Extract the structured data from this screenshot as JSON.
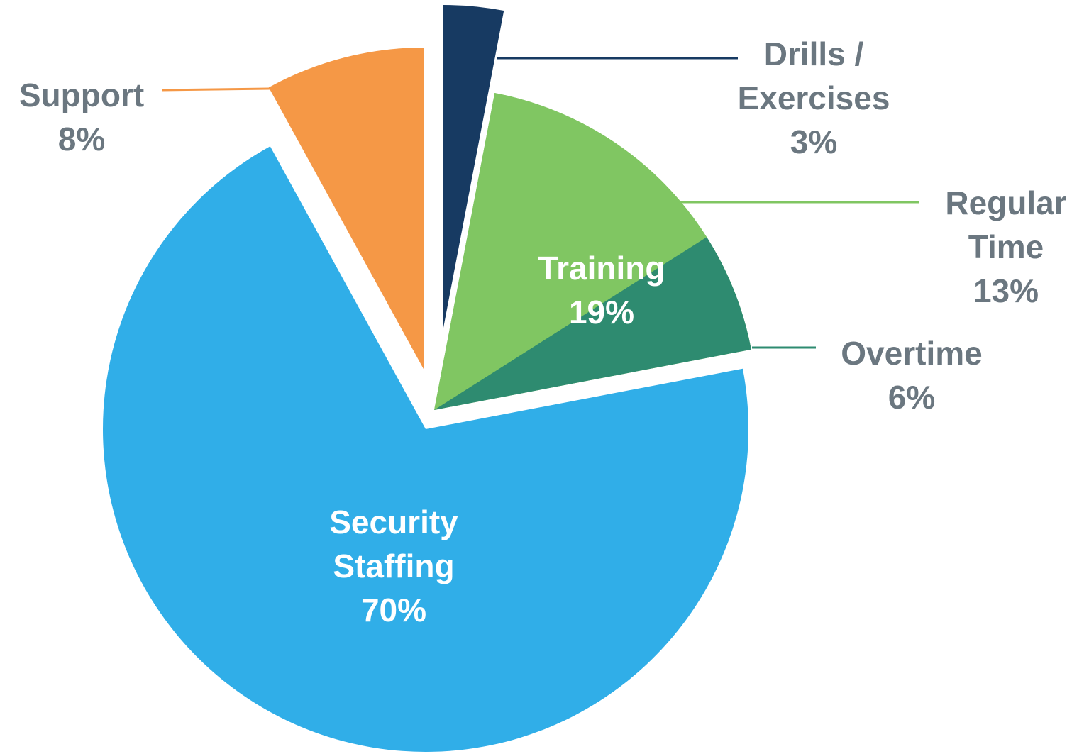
{
  "chart_data": {
    "type": "pie",
    "categories": [
      "Drills / Exercises",
      "Regular Time",
      "Overtime",
      "Security Staffing",
      "Support"
    ],
    "values": [
      3,
      13,
      6,
      70,
      8
    ],
    "value_labels": [
      "3%",
      "13%",
      "6%",
      "70%",
      "8%"
    ],
    "colors": [
      "#173a62",
      "#80c662",
      "#2e8b70",
      "#30aee8",
      "#f59846"
    ],
    "group": {
      "name": "Training",
      "value": 19,
      "value_label": "19%"
    }
  }
}
